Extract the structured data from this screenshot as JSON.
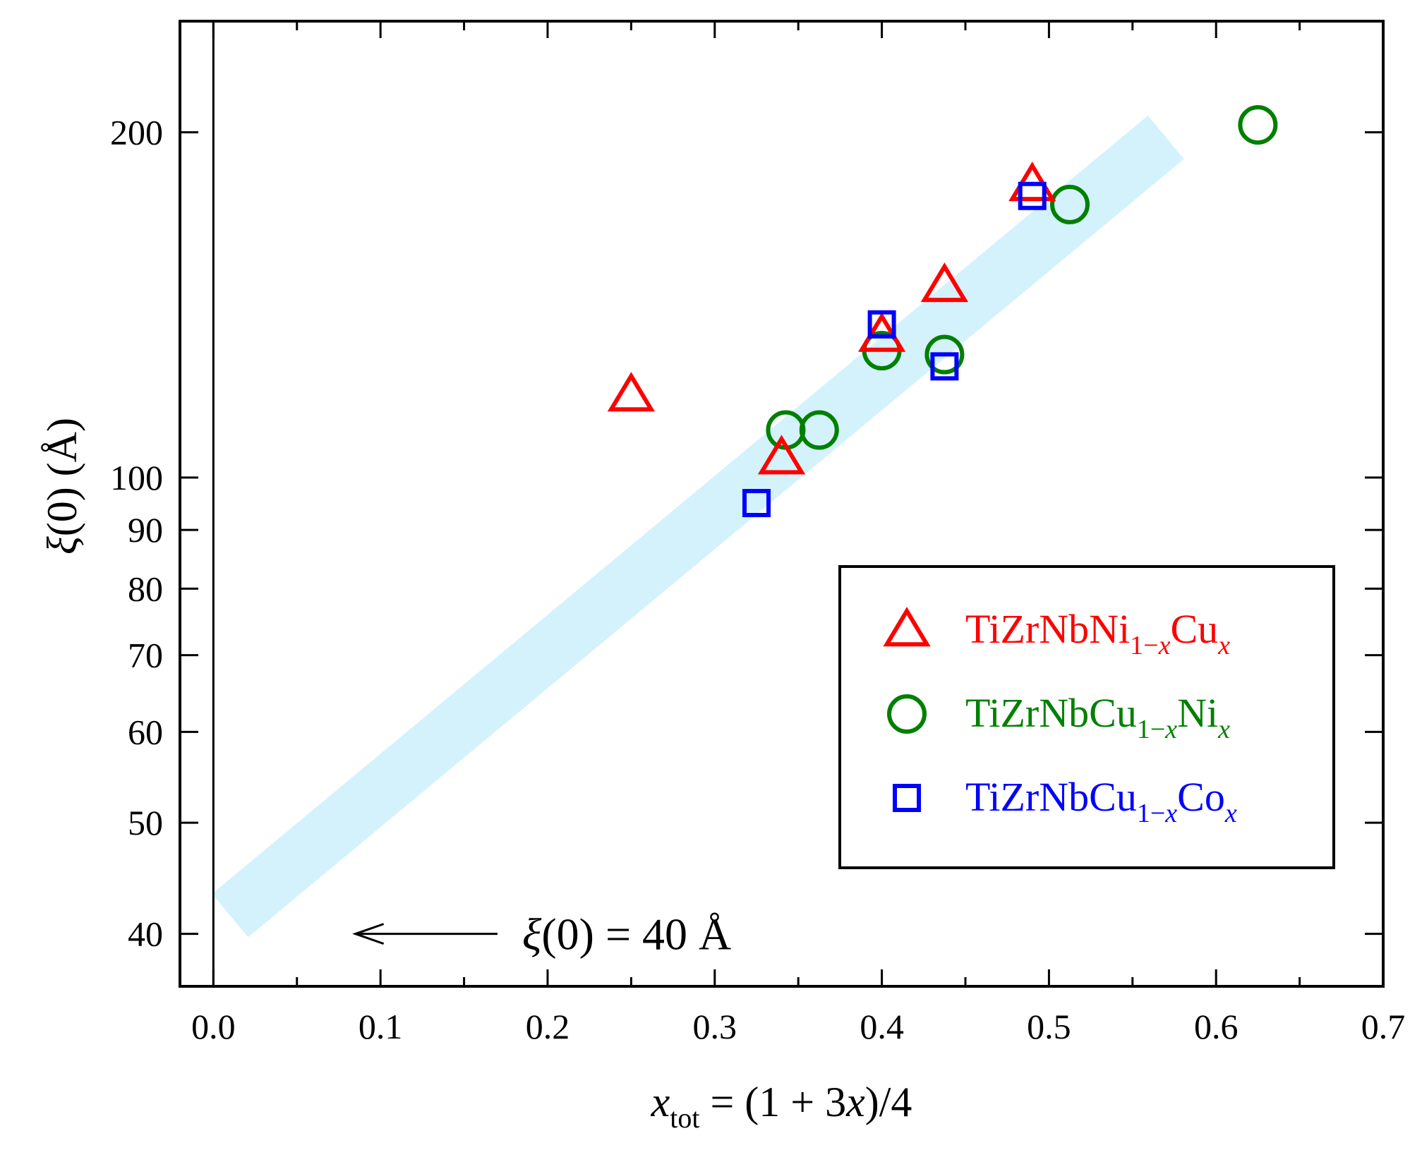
{
  "chart_data": {
    "type": "scatter",
    "title": "",
    "xlabel": {
      "var": "x",
      "sub": "tot",
      "rest": " = (1 + 3",
      "var2": "x",
      "rest2": ")/4"
    },
    "ylabel": {
      "sym": "ξ",
      "rest": "(0) (Å)"
    },
    "xlim": [
      -0.02,
      0.7
    ],
    "ylim": [
      36,
      250
    ],
    "yscale": "log",
    "x_ticks": [
      0.0,
      0.1,
      0.2,
      0.3,
      0.4,
      0.5,
      0.6,
      0.7
    ],
    "x_tick_labels": [
      "0.0",
      "0.1",
      "0.2",
      "0.3",
      "0.4",
      "0.5",
      "0.6",
      "0.7"
    ],
    "y_ticks": [
      40,
      50,
      60,
      70,
      80,
      90,
      100,
      200
    ],
    "y_tick_labels": [
      "40",
      "50",
      "60",
      "70",
      "80",
      "90",
      "100",
      "200"
    ],
    "grid": false,
    "legend_position": "lower-right",
    "series": [
      {
        "name": {
          "a": "TiZrNbNi",
          "b": "1−",
          "c": "x",
          "d": "Cu",
          "e": "x"
        },
        "marker": "triangle",
        "color": "#ff0000",
        "points": [
          [
            0.25,
            118
          ],
          [
            0.34,
            104
          ],
          [
            0.4,
            133
          ],
          [
            0.4375,
            147
          ],
          [
            0.49,
            180
          ]
        ]
      },
      {
        "name": {
          "a": "TiZrNbCu",
          "b": "1−",
          "c": "x",
          "d": "Ni",
          "e": "x"
        },
        "marker": "circle",
        "color": "#008000",
        "points": [
          [
            0.3425,
            110
          ],
          [
            0.3625,
            110
          ],
          [
            0.4,
            129
          ],
          [
            0.4375,
            128
          ],
          [
            0.5125,
            173
          ],
          [
            0.625,
            203
          ]
        ]
      },
      {
        "name": {
          "a": "TiZrNbCu",
          "b": "1−",
          "c": "x",
          "d": "Co",
          "e": "x"
        },
        "marker": "square",
        "color": "#0000ff",
        "points": [
          [
            0.325,
            95
          ],
          [
            0.4,
            136
          ],
          [
            0.4375,
            125
          ],
          [
            0.49,
            176
          ]
        ]
      }
    ],
    "band": {
      "color": "#d4f2fb",
      "from": [
        0.01,
        41.5
      ],
      "to": [
        0.57,
        198
      ]
    },
    "annotation": {
      "sym": "ξ",
      "rest": "(0) = 40 Å",
      "y": 40,
      "arrow_from_x": 0.17,
      "arrow_to_x": 0.085
    },
    "vertical_line_x": 0.0
  }
}
